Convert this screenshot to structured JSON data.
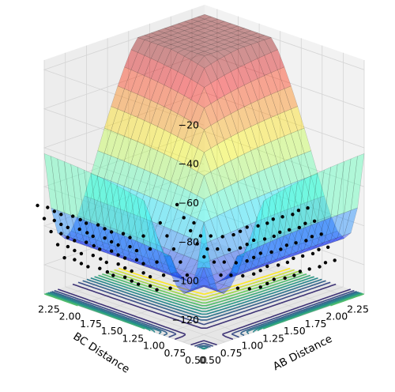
{
  "chart_data": {
    "type": "surface",
    "title": "",
    "xlabel": "AB Distance",
    "ylabel": "BC Distance",
    "zlabel": "",
    "x_ticks": [
      "0.50",
      "0.75",
      "1.00",
      "1.25",
      "1.50",
      "1.75",
      "2.00",
      "2.25"
    ],
    "y_ticks": [
      "0.50",
      "0.75",
      "1.00",
      "1.25",
      "1.50",
      "1.75",
      "2.00",
      "2.25"
    ],
    "z_ticks": [
      "−120",
      "−100",
      "−80",
      "−60",
      "−40",
      "−20"
    ],
    "xlim": [
      0.5,
      2.4
    ],
    "ylim": [
      0.5,
      2.4
    ],
    "zlim": [
      -135,
      -15
    ],
    "surface_colormap": "jet",
    "surface_alpha": 0.4,
    "contour_colormap": "viridis",
    "contour_offset_z": -135,
    "contour_levels": [
      -118,
      -112,
      -106,
      -100,
      -94,
      -88,
      -82,
      -76,
      -70,
      -64,
      -58,
      -52,
      -46,
      -40
    ],
    "trajectory": {
      "marker": "black dots",
      "points": [
        [
          0.74,
          2.4
        ],
        [
          0.76,
          2.3
        ],
        [
          0.74,
          2.2
        ],
        [
          0.72,
          2.1
        ],
        [
          0.76,
          2.0
        ],
        [
          0.75,
          1.9
        ],
        [
          0.72,
          1.8
        ],
        [
          0.76,
          1.7
        ],
        [
          0.74,
          1.6
        ],
        [
          0.72,
          1.5
        ],
        [
          0.76,
          1.4
        ],
        [
          0.74,
          1.3
        ],
        [
          0.8,
          1.2
        ],
        [
          0.9,
          1.1
        ],
        [
          1.0,
          1.0
        ],
        [
          1.1,
          0.9
        ],
        [
          1.2,
          0.8
        ],
        [
          1.3,
          0.76
        ],
        [
          1.4,
          0.73
        ],
        [
          1.5,
          0.75
        ],
        [
          1.6,
          0.77
        ],
        [
          1.7,
          0.74
        ],
        [
          1.8,
          0.73
        ],
        [
          1.9,
          0.76
        ],
        [
          2.0,
          0.75
        ],
        [
          2.1,
          0.73
        ],
        [
          2.2,
          0.76
        ],
        [
          2.3,
          0.75
        ]
      ]
    },
    "grid": true,
    "view": "3d-perspective"
  },
  "colors": {
    "pane": "#f2f2f2",
    "grid": "#d4d4d4",
    "trajectory": "#000000"
  }
}
